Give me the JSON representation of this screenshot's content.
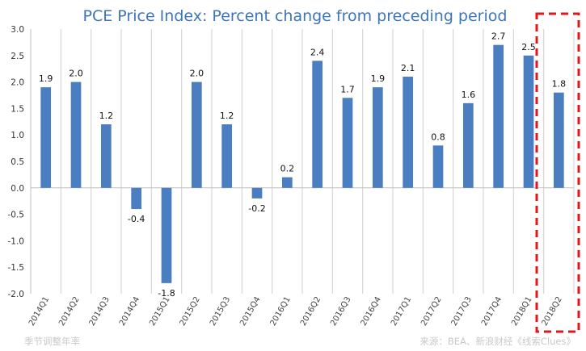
{
  "chart_data": {
    "type": "bar",
    "title": "PCE Price Index: Percent change from preceding period",
    "categories": [
      "2014Q1",
      "2014Q2",
      "2014Q3",
      "2014Q4",
      "2015Q1",
      "2015Q2",
      "2015Q3",
      "2015Q4",
      "2016Q1",
      "2016Q2",
      "2016Q3",
      "2016Q4",
      "2017Q1",
      "2017Q2",
      "2017Q3",
      "2017Q4",
      "2018Q1",
      "2018Q2"
    ],
    "values": [
      1.9,
      2.0,
      1.2,
      -0.4,
      -1.8,
      2.0,
      1.2,
      -0.2,
      0.2,
      2.4,
      1.7,
      1.9,
      2.1,
      0.8,
      1.6,
      2.7,
      2.5,
      1.8
    ],
    "data_labels": [
      "1.9",
      "2.0",
      "1.2",
      "-0.4",
      "-1.8",
      "2.0",
      "1.2",
      "-0.2",
      "0.2",
      "2.4",
      "1.7",
      "1.9",
      "2.1",
      "0.8",
      "1.6",
      "2.7",
      "2.5",
      "1.8"
    ],
    "ylim": [
      -2.0,
      3.0
    ],
    "yticks": [
      "3.0",
      "2.5",
      "2.0",
      "1.5",
      "1.0",
      "0.5",
      "0.0",
      "-0.5",
      "-1.0",
      "-1.5",
      "-2.0"
    ],
    "xlabel": "",
    "ylabel": "",
    "grid": "vertical",
    "highlighted_category": "2018Q2",
    "colors": {
      "bar": "#4a7ec0",
      "title": "#3d76b8",
      "highlight": "#e3161c"
    }
  },
  "footnote_left": "季节调整年率",
  "footnote_right": "来源：BEA、新浪财经《线索Clues》"
}
